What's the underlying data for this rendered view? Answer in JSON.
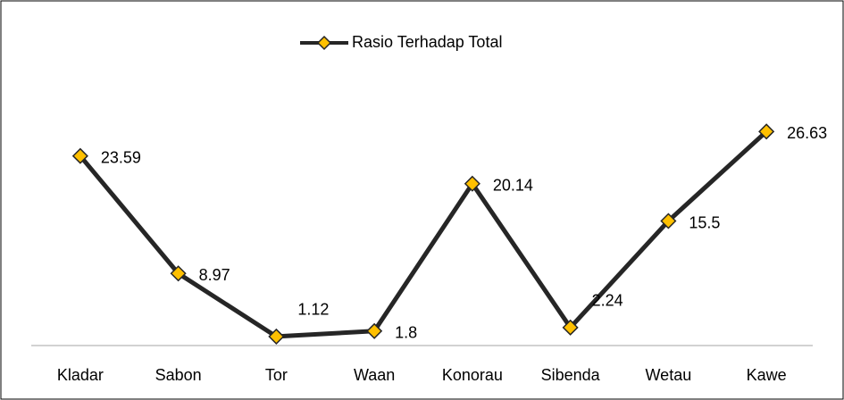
{
  "chart_data": {
    "type": "line",
    "categories": [
      "Kladar",
      "Sabon",
      "Tor",
      "Waan",
      "Konorau",
      "Sibenda",
      "Wetau",
      "Kawe"
    ],
    "series": [
      {
        "name": "Rasio Terhadap Total",
        "color": "#262626",
        "marker_color": "#FFC000",
        "values": [
          23.59,
          8.97,
          1.12,
          1.8,
          20.14,
          2.24,
          15.5,
          26.63
        ]
      }
    ],
    "ylim": [
      0,
      30
    ],
    "legend": "top"
  }
}
